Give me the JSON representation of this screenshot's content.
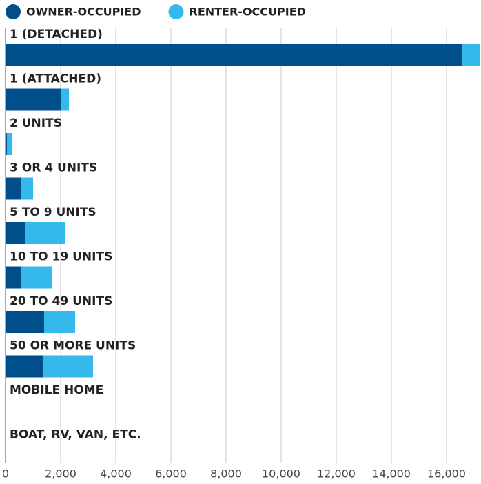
{
  "chart_data": {
    "type": "bar",
    "orientation": "horizontal",
    "stacked": true,
    "categories": [
      "1 (DETACHED)",
      "1 (ATTACHED)",
      "2 UNITS",
      "3 OR 4 UNITS",
      "5 TO 9 UNITS",
      "10 TO 19 UNITS",
      "20 TO 49 UNITS",
      "50 OR MORE UNITS",
      "MOBILE HOME",
      "BOAT, RV, VAN, ETC."
    ],
    "series": [
      {
        "name": "OWNER-OCCUPIED",
        "color": "#004f8b",
        "values": [
          16575,
          2000,
          50,
          575,
          700,
          575,
          1400,
          1350,
          0,
          0
        ]
      },
      {
        "name": "RENTER-OCCUPIED",
        "color": "#35b9ec",
        "values": [
          650,
          300,
          175,
          425,
          1475,
          1100,
          1125,
          1825,
          0,
          0
        ]
      }
    ],
    "xlim": [
      0,
      17225
    ],
    "xticks": [
      0,
      {
        "value": 2000,
        "label": "2,000"
      },
      {
        "value": 4000,
        "label": "4,000"
      },
      {
        "value": 6000,
        "label": "6,000"
      },
      {
        "value": 8000,
        "label": "8,000"
      },
      {
        "value": 10000,
        "label": "10,000"
      },
      {
        "value": 12000,
        "label": "12,000"
      },
      {
        "value": 14000,
        "label": "14,000"
      },
      {
        "value": 16000,
        "label": "16,000"
      }
    ],
    "grid": true,
    "legend": "top"
  }
}
